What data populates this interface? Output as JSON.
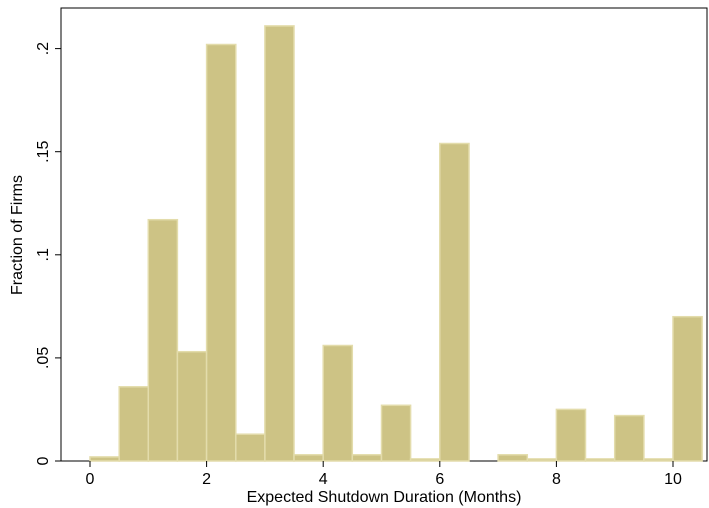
{
  "chart_data": {
    "type": "bar",
    "title": "",
    "xlabel": "Expected Shutdown Duration (Months)",
    "ylabel": "Fraction of Firms",
    "xlim": [
      -0.5,
      10.5
    ],
    "ylim": [
      0,
      0.22
    ],
    "x_ticks": [
      0,
      2,
      4,
      6,
      8,
      10
    ],
    "y_ticks": [
      0,
      0.05,
      0.1,
      0.15,
      0.2
    ],
    "x_tick_labels": [
      "0",
      "2",
      "4",
      "6",
      "8",
      "10"
    ],
    "y_tick_labels": [
      "0",
      ".05",
      ".1",
      ".15",
      ".2"
    ],
    "bin_width": 0.5,
    "bin_starts": [
      0,
      0.5,
      1,
      1.5,
      2,
      2.5,
      3,
      3.5,
      4,
      4.5,
      5,
      5.5,
      6,
      6.5,
      7,
      7.5,
      8,
      8.5,
      9,
      9.5,
      10
    ],
    "values": [
      0.002,
      0.036,
      0.117,
      0.053,
      0.202,
      0.013,
      0.211,
      0.003,
      0.056,
      0.003,
      0.027,
      0.001,
      0.154,
      0.0,
      0.003,
      0.001,
      0.025,
      0.001,
      0.022,
      0.001,
      0.07
    ],
    "grid": false,
    "legend": "none",
    "colors": {
      "bar_fill": "#cdc385",
      "bar_edge": "#e3dcab",
      "axis": "#000000",
      "frame": "#000000"
    }
  }
}
